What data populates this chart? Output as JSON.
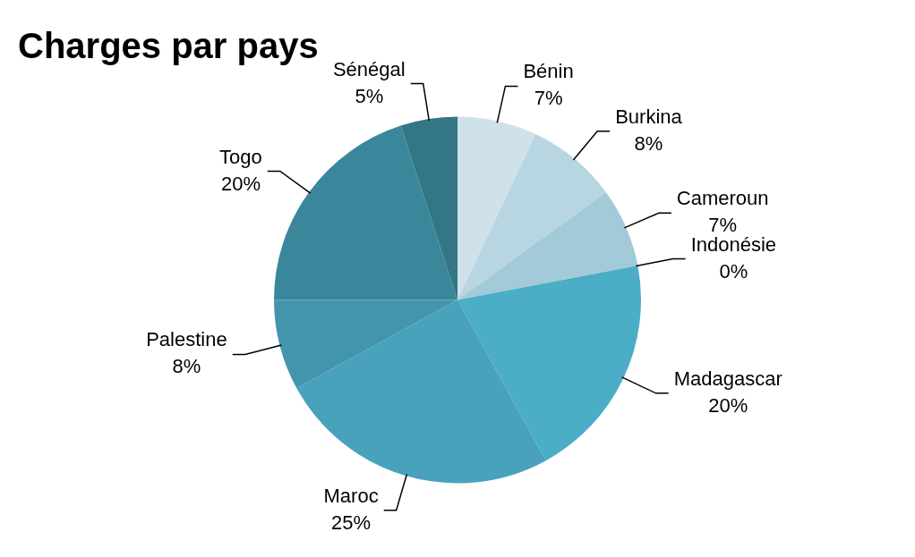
{
  "chart_data": {
    "type": "pie",
    "title": "Charges par pays",
    "categories": [
      "Bénin",
      "Burkina",
      "Cameroun",
      "Indonésie",
      "Madagascar",
      "Maroc",
      "Palestine",
      "Togo",
      "Sénégal"
    ],
    "values": [
      7,
      8,
      7,
      0,
      20,
      25,
      8,
      20,
      5
    ],
    "value_labels": [
      "7%",
      "8%",
      "7%",
      "0%",
      "20%",
      "25%",
      "8%",
      "20%",
      "5%"
    ],
    "colors": [
      "#cfe2ea",
      "#b7d6e1",
      "#a2cad8",
      "#7fbdd0",
      "#4badc6",
      "#48a2bb",
      "#4395ae",
      "#3a879c",
      "#337686"
    ],
    "legend": false
  }
}
